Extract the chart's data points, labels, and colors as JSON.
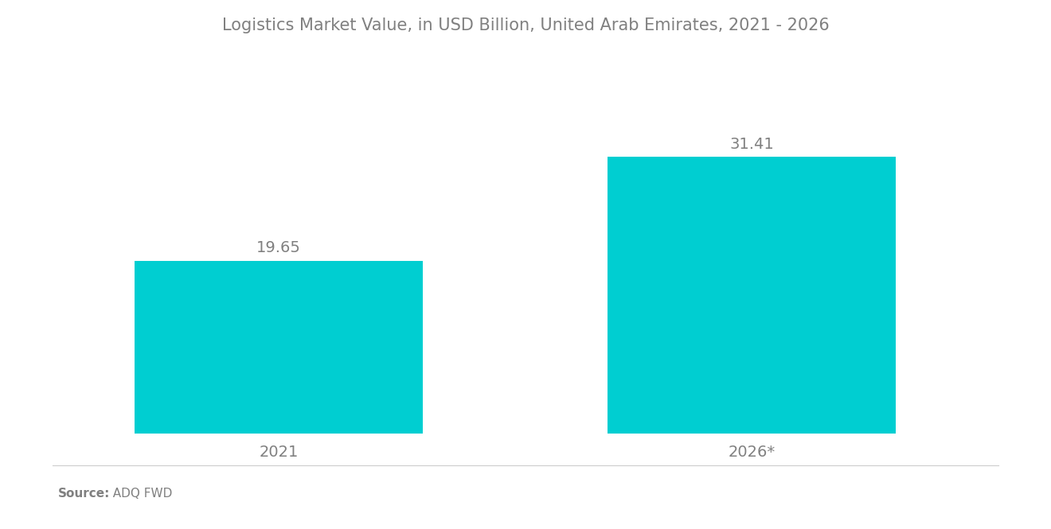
{
  "title": "Logistics Market Value, in USD Billion, United Arab Emirates, 2021 - 2026",
  "categories": [
    "2021",
    "2026*"
  ],
  "values": [
    19.65,
    31.41
  ],
  "bar_color": "#00CED1",
  "bar_width": 0.28,
  "label_fontsize": 14,
  "title_fontsize": 15,
  "tick_fontsize": 14,
  "source_text_bold": "Source:",
  "source_text_normal": "  ADQ FWD",
  "background_color": "#ffffff",
  "text_color": "#808080",
  "ylim": [
    0,
    42
  ],
  "x_positions": [
    0.22,
    0.68
  ],
  "xlim": [
    0.0,
    0.92
  ]
}
